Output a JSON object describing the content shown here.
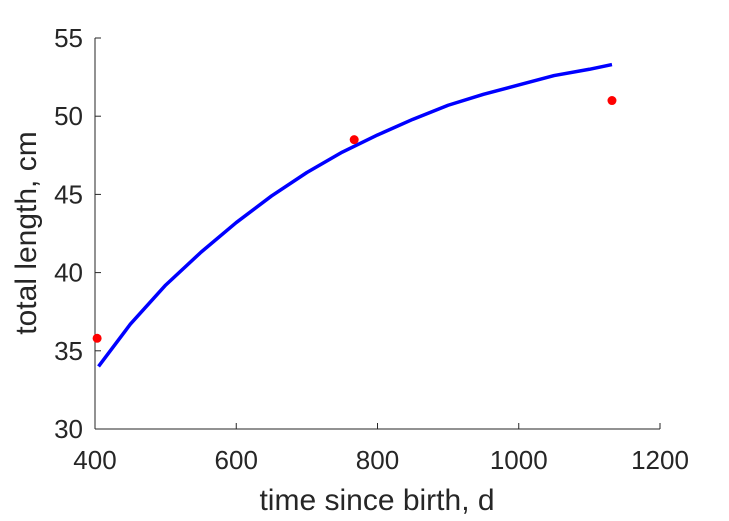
{
  "chart_data": {
    "type": "line",
    "title": "",
    "xlabel": "time since birth, d",
    "ylabel": "total length, cm",
    "xlim": [
      400,
      1200
    ],
    "ylim": [
      30,
      55
    ],
    "xticks": [
      400,
      600,
      800,
      1000,
      1200
    ],
    "yticks": [
      30,
      35,
      40,
      45,
      50,
      55
    ],
    "grid": false,
    "legend": "none",
    "series": [
      {
        "kind": "line",
        "color": "#0000ff",
        "x": [
          405,
          450,
          500,
          550,
          600,
          650,
          700,
          750,
          800,
          850,
          900,
          950,
          1000,
          1050,
          1100,
          1132
        ],
        "y": [
          34.0,
          36.7,
          39.2,
          41.3,
          43.2,
          44.9,
          46.4,
          47.7,
          48.8,
          49.8,
          50.7,
          51.4,
          52.0,
          52.6,
          53.0,
          53.3
        ]
      },
      {
        "kind": "scatter",
        "color": "#ff0000",
        "x": [
          403,
          767,
          1132
        ],
        "y": [
          35.8,
          48.5,
          51.0
        ]
      }
    ]
  }
}
